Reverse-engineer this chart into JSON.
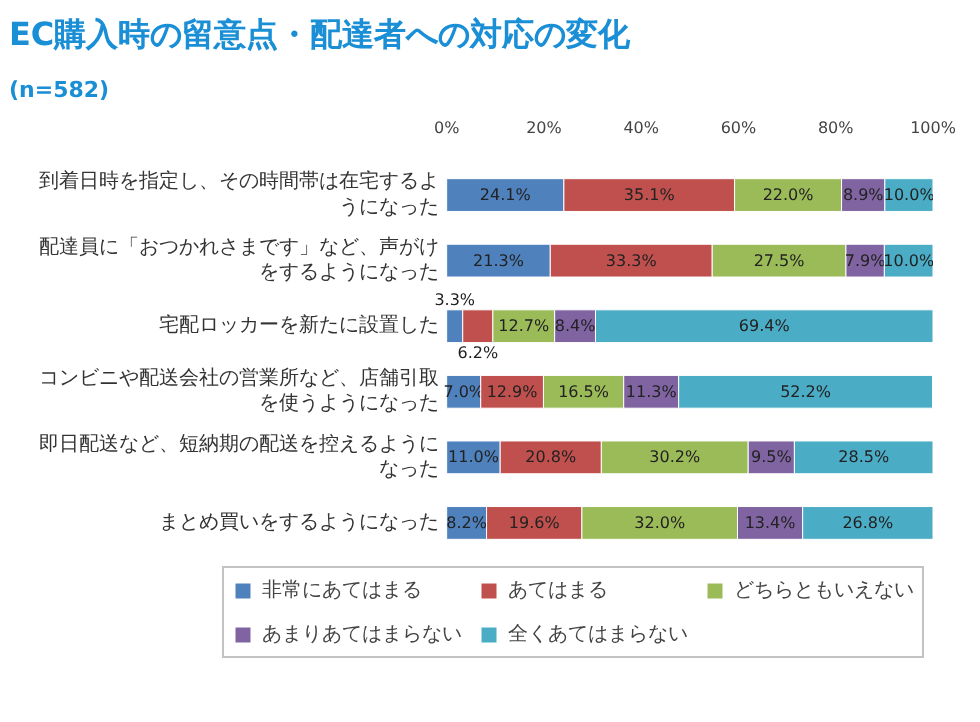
{
  "chart_data": {
    "type": "bar",
    "orientation": "horizontal",
    "stacked": true,
    "title": "EC購入時の留意点・配達者への対応の変化",
    "subtitle": "(n=582)",
    "categories": [
      "到着日時を指定し、その時間帯は在宅するようになった",
      "配達員に「おつかれさまです」など、声がけをするようになった",
      "宅配ロッカーを新たに設置した",
      "コンビニや配送会社の営業所など、店舗引取を使うようになった",
      "即日配送など、短納期の配送を控えるようになった",
      "まとめ買いをするようになった"
    ],
    "series": [
      {
        "name": "非常にあてはまる",
        "color": "#4f81bd",
        "values": [
          24.1,
          21.3,
          3.3,
          7.0,
          11.0,
          8.2
        ]
      },
      {
        "name": "あてはまる",
        "color": "#c0504d",
        "values": [
          35.1,
          33.3,
          6.2,
          12.9,
          20.8,
          19.6
        ]
      },
      {
        "name": "どちらともいえない",
        "color": "#9bbb59",
        "values": [
          22.0,
          27.5,
          12.7,
          16.5,
          30.2,
          32.0
        ]
      },
      {
        "name": "あまりあてはまらない",
        "color": "#8064a2",
        "values": [
          8.9,
          7.9,
          8.4,
          11.3,
          9.5,
          13.4
        ]
      },
      {
        "name": "全くあてはまらない",
        "color": "#4bacc6",
        "values": [
          10.0,
          10.0,
          69.4,
          52.2,
          28.5,
          26.8
        ]
      }
    ],
    "xlim": [
      0,
      100
    ],
    "xticks": [
      {
        "value": 0,
        "label": "0%"
      },
      {
        "value": 20,
        "label": "20%"
      },
      {
        "value": 40,
        "label": "40%"
      },
      {
        "value": 60,
        "label": "60%"
      },
      {
        "value": 80,
        "label": "80%"
      },
      {
        "value": 100,
        "label": "100%"
      }
    ],
    "value_labels": [
      [
        "24.1%",
        "21.3%",
        "3.3%",
        "7.0%",
        "11.0%",
        "8.2%"
      ],
      [
        "35.1%",
        "33.3%",
        "6.2%",
        "12.9%",
        "20.8%",
        "19.6%"
      ],
      [
        "22.0%",
        "27.5%",
        "12.7%",
        "16.5%",
        "30.2%",
        "32.0%"
      ],
      [
        "8.9%",
        "7.9%",
        "8.4%",
        "11.3%",
        "9.5%",
        "13.4%"
      ],
      [
        "10.0%",
        "10.0%",
        "69.4%",
        "52.2%",
        "28.5%",
        "26.8%"
      ]
    ],
    "legend": "bottom",
    "grid": false
  }
}
